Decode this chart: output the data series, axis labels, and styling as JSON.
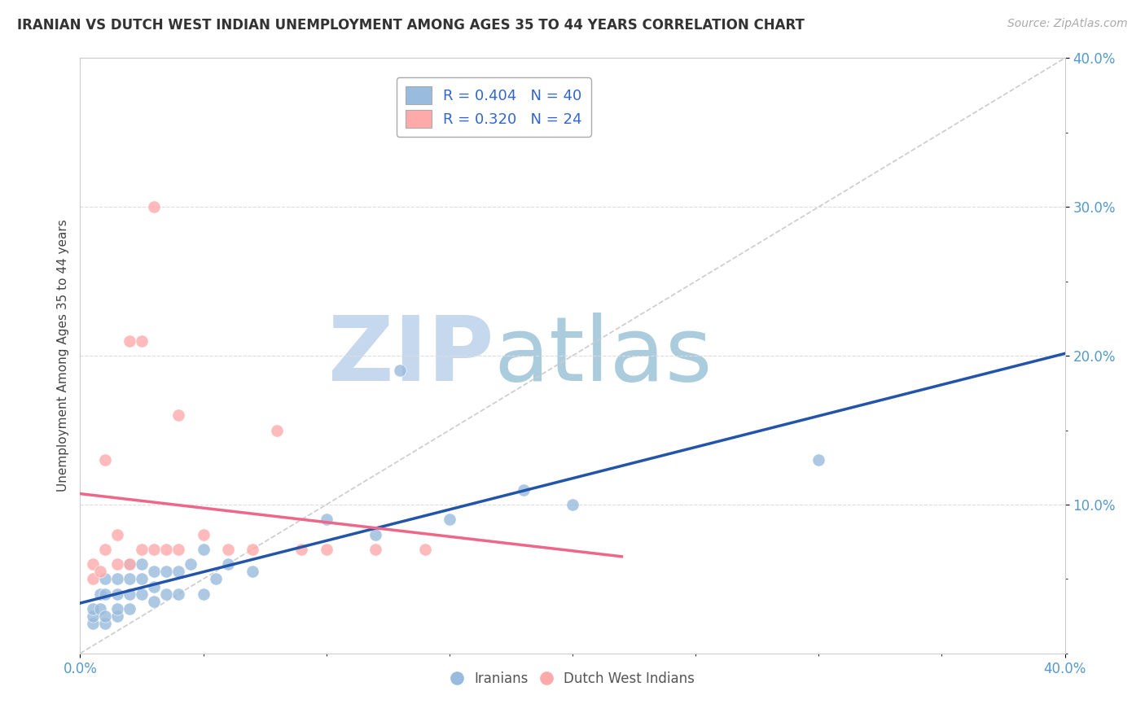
{
  "title": "IRANIAN VS DUTCH WEST INDIAN UNEMPLOYMENT AMONG AGES 35 TO 44 YEARS CORRELATION CHART",
  "source": "Source: ZipAtlas.com",
  "ylabel": "Unemployment Among Ages 35 to 44 years",
  "xlim": [
    0,
    0.4
  ],
  "ylim": [
    0,
    0.4
  ],
  "legend_iranian": "R = 0.404   N = 40",
  "legend_dutch": "R = 0.320   N = 24",
  "legend_label_iranian": "Iranians",
  "legend_label_dutch": "Dutch West Indians",
  "iranian_color": "#99BBDD",
  "dutch_color": "#FFAAAA",
  "iranian_line_color": "#2255AA",
  "dutch_line_color": "#EE6688",
  "watermark_zip_color": "#C5D8EE",
  "watermark_atlas_color": "#AACCDD",
  "background_color": "#FFFFFF",
  "grid_color": "#DDDDDD",
  "iranian_x": [
    0.005,
    0.005,
    0.005,
    0.008,
    0.008,
    0.01,
    0.01,
    0.01,
    0.01,
    0.015,
    0.015,
    0.015,
    0.015,
    0.02,
    0.02,
    0.02,
    0.02,
    0.025,
    0.025,
    0.025,
    0.03,
    0.03,
    0.03,
    0.035,
    0.035,
    0.04,
    0.04,
    0.045,
    0.05,
    0.05,
    0.055,
    0.06,
    0.07,
    0.1,
    0.12,
    0.13,
    0.15,
    0.18,
    0.2,
    0.3
  ],
  "iranian_y": [
    0.02,
    0.025,
    0.03,
    0.03,
    0.04,
    0.02,
    0.025,
    0.04,
    0.05,
    0.025,
    0.03,
    0.04,
    0.05,
    0.03,
    0.04,
    0.05,
    0.06,
    0.04,
    0.05,
    0.06,
    0.035,
    0.045,
    0.055,
    0.04,
    0.055,
    0.04,
    0.055,
    0.06,
    0.04,
    0.07,
    0.05,
    0.06,
    0.055,
    0.09,
    0.08,
    0.19,
    0.09,
    0.11,
    0.1,
    0.13
  ],
  "dutch_x": [
    0.005,
    0.005,
    0.008,
    0.01,
    0.01,
    0.015,
    0.015,
    0.02,
    0.02,
    0.025,
    0.025,
    0.03,
    0.03,
    0.035,
    0.04,
    0.04,
    0.05,
    0.06,
    0.07,
    0.08,
    0.09,
    0.1,
    0.12,
    0.14
  ],
  "dutch_y": [
    0.05,
    0.06,
    0.055,
    0.07,
    0.13,
    0.06,
    0.08,
    0.06,
    0.21,
    0.07,
    0.21,
    0.07,
    0.3,
    0.07,
    0.07,
    0.16,
    0.08,
    0.07,
    0.07,
    0.15,
    0.07,
    0.07,
    0.07,
    0.07
  ]
}
